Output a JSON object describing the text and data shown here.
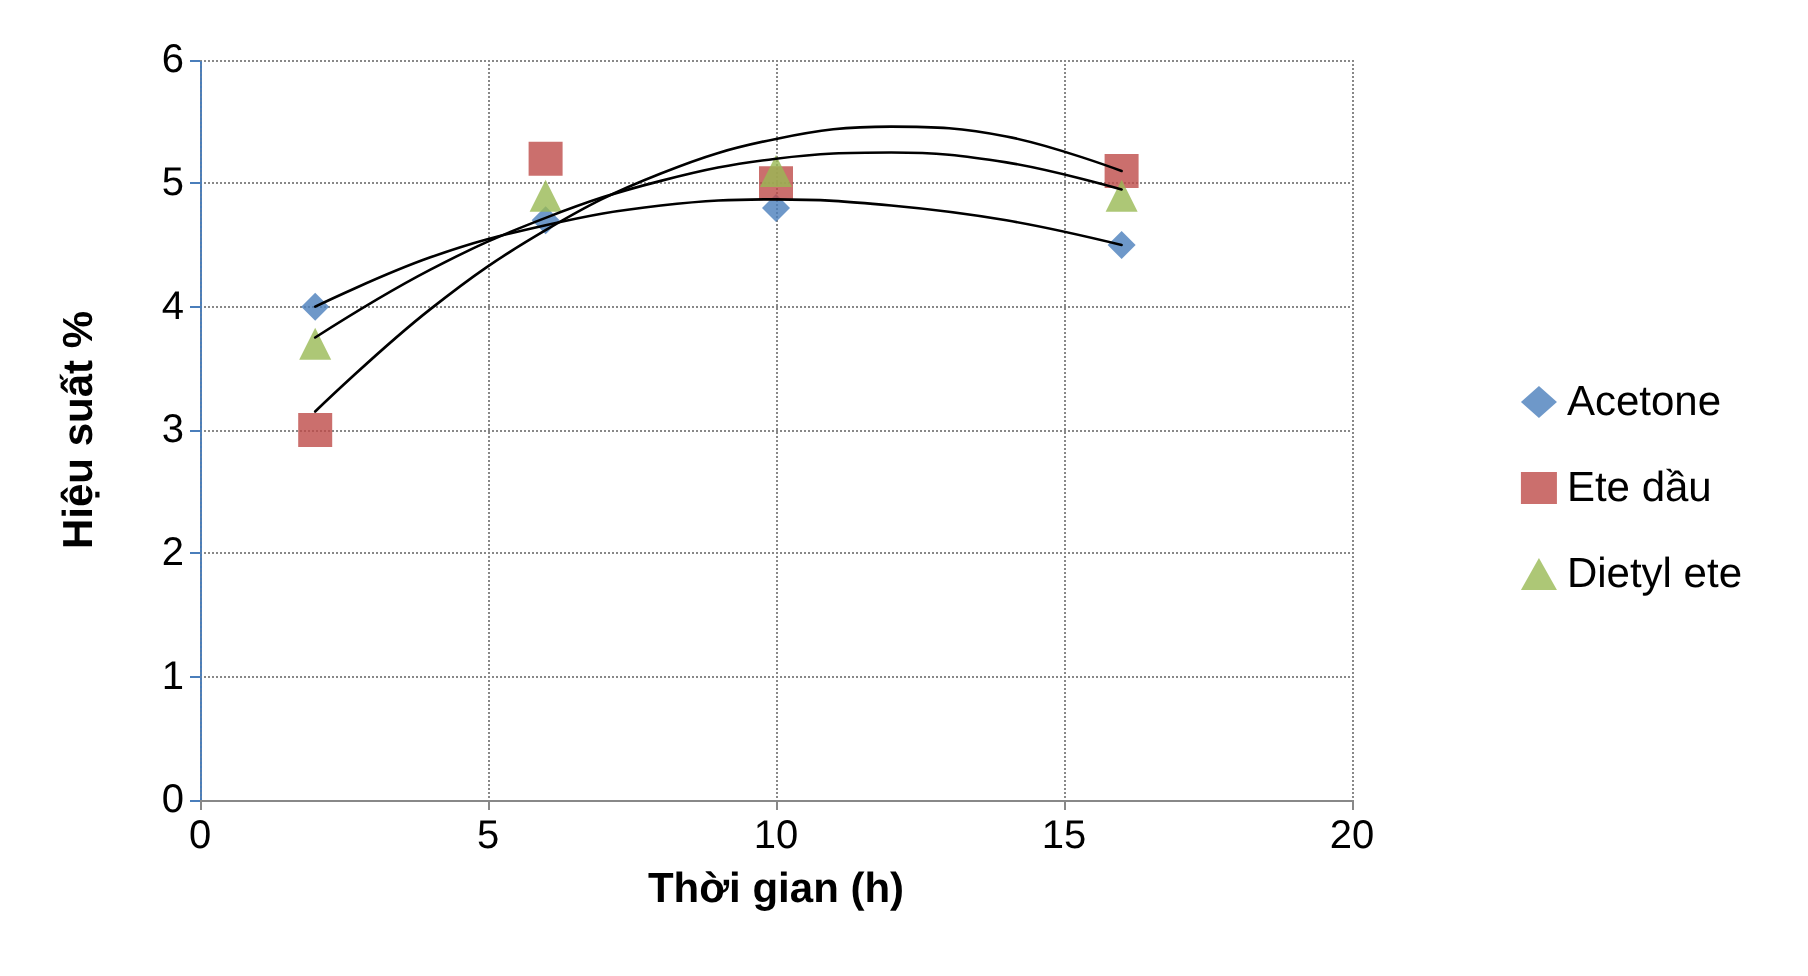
{
  "chart_data": {
    "type": "scatter",
    "xlabel": "Thời gian (h)",
    "ylabel": "Hiệu suất %",
    "xlim": [
      0,
      20
    ],
    "xticks": [
      0,
      5,
      10,
      15,
      20
    ],
    "ylim": [
      0,
      6
    ],
    "yticks": [
      0,
      1,
      2,
      3,
      4,
      5,
      6
    ],
    "grid": true,
    "legend": "right",
    "x": [
      2,
      6,
      10,
      16
    ],
    "series": [
      {
        "name": "Acetone",
        "color": "#4a7ebb",
        "marker": "diamond",
        "values": [
          4.0,
          4.7,
          4.8,
          4.5
        ]
      },
      {
        "name": "Ete dầu",
        "color": "#be4b48",
        "marker": "square",
        "values": [
          3.0,
          5.2,
          5.0,
          5.1
        ]
      },
      {
        "name": "Dietyl ete",
        "color": "#98b954",
        "marker": "triangle",
        "values": [
          3.7,
          4.9,
          5.1,
          4.9
        ]
      },
      {
        "type": "line",
        "color": "#000000",
        "marker": "none",
        "x": [
          2,
          4,
          6,
          8,
          10,
          12,
          14,
          16
        ],
        "values": [
          4.0,
          4.4,
          4.66,
          4.82,
          4.87,
          4.82,
          4.7,
          4.5
        ]
      },
      {
        "type": "line",
        "color": "#000000",
        "marker": "none",
        "x": [
          2,
          4,
          6,
          8,
          10,
          12,
          14,
          16
        ],
        "values": [
          3.15,
          3.98,
          4.62,
          5.08,
          5.36,
          5.46,
          5.38,
          5.1
        ]
      },
      {
        "type": "line",
        "color": "#000000",
        "marker": "none",
        "x": [
          2,
          4,
          6,
          8,
          10,
          12,
          14,
          16
        ],
        "values": [
          3.75,
          4.3,
          4.72,
          5.02,
          5.2,
          5.25,
          5.17,
          4.95
        ]
      }
    ]
  }
}
